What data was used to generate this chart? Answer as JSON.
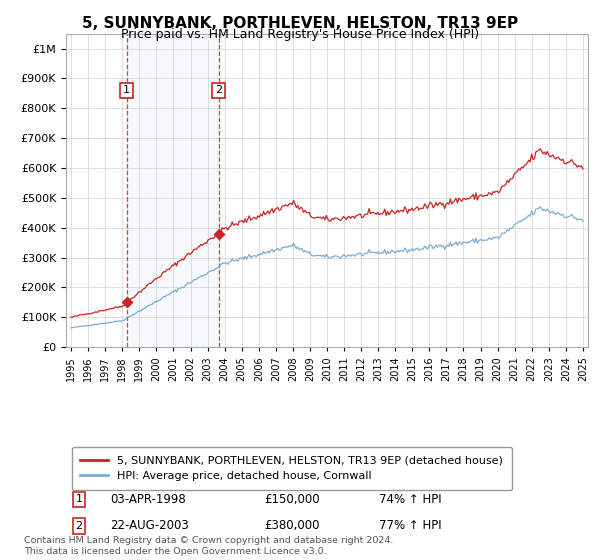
{
  "title": "5, SUNNYBANK, PORTHLEVEN, HELSTON, TR13 9EP",
  "subtitle": "Price paid vs. HM Land Registry's House Price Index (HPI)",
  "legend_line1": "5, SUNNYBANK, PORTHLEVEN, HELSTON, TR13 9EP (detached house)",
  "legend_line2": "HPI: Average price, detached house, Cornwall",
  "footer": "Contains HM Land Registry data © Crown copyright and database right 2024.\nThis data is licensed under the Open Government Licence v3.0.",
  "transaction1_label": "1",
  "transaction1_date": "03-APR-1998",
  "transaction1_price": "£150,000",
  "transaction1_hpi": "74% ↑ HPI",
  "transaction1_year": 1998.25,
  "transaction1_value": 150000,
  "transaction2_label": "2",
  "transaction2_date": "22-AUG-2003",
  "transaction2_price": "£380,000",
  "transaction2_hpi": "77% ↑ HPI",
  "transaction2_year": 2003.64,
  "transaction2_value": 380000,
  "hpi_color": "#7aadd4",
  "price_color": "#cc2222",
  "shading_color": "#dce9f5",
  "marker_color": "#cc2222",
  "transaction_box_color": "#cc2222",
  "ylim_min": 0,
  "ylim_max": 1050000,
  "background_color": "#ffffff",
  "title_fontsize": 11,
  "subtitle_fontsize": 9
}
